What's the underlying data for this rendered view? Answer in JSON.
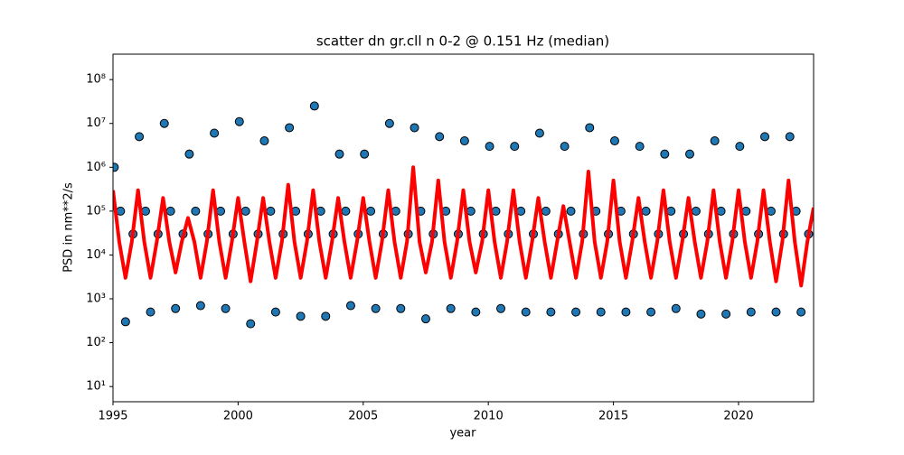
{
  "chart_data": [
    {
      "type": "scatter",
      "title": "scatter dn gr.cll n 0-2 @ 0.151 Hz (median)",
      "xlabel": "year",
      "ylabel": "PSD in nm**2/s",
      "xlim": [
        1995,
        2023
      ],
      "xticks": [
        1995,
        2000,
        2005,
        2010,
        2015,
        2020
      ],
      "ylim": [
        4.5,
        380000000.0
      ],
      "yscale": "log",
      "yticks": [
        {
          "value": 10,
          "label": "10¹"
        },
        {
          "value": 100,
          "label": "10²"
        },
        {
          "value": 1000,
          "label": "10³"
        },
        {
          "value": 10000,
          "label": "10⁴"
        },
        {
          "value": 100000,
          "label": "10⁵"
        },
        {
          "value": 1000000,
          "label": "10⁶"
        },
        {
          "value": 10000000,
          "label": "10⁷"
        },
        {
          "value": 100000000,
          "label": "10⁸"
        }
      ],
      "color": "#1f77b4",
      "edgecolor": "#000000",
      "x": [
        1995.05,
        1995.3,
        1995.5,
        1995.8,
        1996.05,
        1996.3,
        1996.5,
        1996.8,
        1997.05,
        1997.3,
        1997.5,
        1997.8,
        1998.05,
        1998.3,
        1998.5,
        1998.8,
        1999.05,
        1999.3,
        1999.5,
        1999.8,
        2000.05,
        2000.3,
        2000.5,
        2000.8,
        2001.05,
        2001.3,
        2001.5,
        2001.8,
        2002.05,
        2002.3,
        2002.5,
        2002.8,
        2003.05,
        2003.3,
        2003.5,
        2003.8,
        2004.05,
        2004.3,
        2004.5,
        2004.8,
        2005.05,
        2005.3,
        2005.5,
        2005.8,
        2006.05,
        2006.3,
        2006.5,
        2006.8,
        2007.05,
        2007.3,
        2007.5,
        2007.8,
        2008.05,
        2008.3,
        2008.5,
        2008.8,
        2009.05,
        2009.3,
        2009.5,
        2009.8,
        2010.05,
        2010.3,
        2010.5,
        2010.8,
        2011.05,
        2011.3,
        2011.5,
        2011.8,
        2012.05,
        2012.3,
        2012.5,
        2012.8,
        2013.05,
        2013.3,
        2013.5,
        2013.8,
        2014.05,
        2014.3,
        2014.5,
        2014.8,
        2015.05,
        2015.3,
        2015.5,
        2015.8,
        2016.05,
        2016.3,
        2016.5,
        2016.8,
        2017.05,
        2017.3,
        2017.5,
        2017.8,
        2018.05,
        2018.3,
        2018.5,
        2018.8,
        2019.05,
        2019.3,
        2019.5,
        2019.8,
        2020.05,
        2020.3,
        2020.5,
        2020.8,
        2021.05,
        2021.3,
        2021.5,
        2021.8,
        2022.05,
        2022.3,
        2022.5,
        2022.8
      ],
      "values": [
        1000000.0,
        100000.0,
        300,
        30000.0,
        5000000.0,
        100000.0,
        500,
        30000.0,
        10000000.0,
        100000.0,
        600,
        30000.0,
        2000000.0,
        100000.0,
        700,
        30000.0,
        6000000.0,
        100000.0,
        600,
        30000.0,
        11000000.0,
        100000.0,
        270,
        30000.0,
        4000000.0,
        100000.0,
        500,
        30000.0,
        8000000.0,
        100000.0,
        400,
        30000.0,
        25000000.0,
        100000.0,
        400,
        30000.0,
        2000000.0,
        100000.0,
        700,
        30000.0,
        2000000.0,
        100000.0,
        600,
        30000.0,
        10000000.0,
        100000.0,
        600,
        30000.0,
        8000000.0,
        100000.0,
        350,
        30000.0,
        5000000.0,
        100000.0,
        600,
        30000.0,
        4000000.0,
        100000.0,
        500,
        30000.0,
        3000000.0,
        100000.0,
        600,
        30000.0,
        3000000.0,
        100000.0,
        500,
        30000.0,
        6000000.0,
        100000.0,
        500,
        30000.0,
        3000000.0,
        100000.0,
        500,
        30000.0,
        8000000.0,
        100000.0,
        500,
        30000.0,
        4000000.0,
        100000.0,
        500,
        30000.0,
        3000000.0,
        100000.0,
        500,
        30000.0,
        2000000.0,
        100000.0,
        600,
        30000.0,
        2000000.0,
        100000.0,
        450,
        30000.0,
        4000000.0,
        100000.0,
        450,
        30000.0,
        3000000.0,
        100000.0,
        500,
        30000.0,
        5000000.0,
        100000.0,
        500,
        30000.0,
        5000000.0,
        100000.0,
        500,
        30000.0
      ]
    },
    {
      "type": "line",
      "color": "#ff0000",
      "x": [
        1995,
        1995.25,
        1995.5,
        1995.75,
        1996,
        1996.25,
        1996.5,
        1996.75,
        1997,
        1997.25,
        1997.5,
        1997.75,
        1998,
        1998.25,
        1998.5,
        1998.75,
        1999,
        1999.25,
        1999.5,
        1999.75,
        2000,
        2000.25,
        2000.5,
        2000.75,
        2001,
        2001.25,
        2001.5,
        2001.75,
        2002,
        2002.25,
        2002.5,
        2002.75,
        2003,
        2003.25,
        2003.5,
        2003.75,
        2004,
        2004.25,
        2004.5,
        2004.75,
        2005,
        2005.25,
        2005.5,
        2005.75,
        2006,
        2006.25,
        2006.5,
        2006.75,
        2007,
        2007.25,
        2007.5,
        2007.75,
        2008,
        2008.25,
        2008.5,
        2008.75,
        2009,
        2009.25,
        2009.5,
        2009.75,
        2010,
        2010.25,
        2010.5,
        2010.75,
        2011,
        2011.25,
        2011.5,
        2011.75,
        2012,
        2012.25,
        2012.5,
        2012.75,
        2013,
        2013.25,
        2013.5,
        2013.75,
        2014,
        2014.25,
        2014.5,
        2014.75,
        2015,
        2015.25,
        2015.5,
        2015.75,
        2016,
        2016.25,
        2016.5,
        2016.75,
        2017,
        2017.25,
        2017.5,
        2017.75,
        2018,
        2018.25,
        2018.5,
        2018.75,
        2019,
        2019.25,
        2019.5,
        2019.75,
        2020,
        2020.25,
        2020.5,
        2020.75,
        2021,
        2021.25,
        2021.5,
        2021.75,
        2022,
        2022.25,
        2022.5,
        2022.75,
        2023
      ],
      "values": [
        300000.0,
        20000.0,
        3000,
        20000.0,
        300000.0,
        20000.0,
        3000,
        20000.0,
        200000.0,
        20000.0,
        4000,
        20000.0,
        70000.0,
        20000.0,
        3000,
        20000.0,
        300000.0,
        20000.0,
        3000,
        20000.0,
        200000.0,
        20000.0,
        2500,
        20000.0,
        200000.0,
        20000.0,
        3000,
        20000.0,
        400000.0,
        20000.0,
        3000,
        20000.0,
        300000.0,
        20000.0,
        3000,
        20000.0,
        200000.0,
        20000.0,
        3000,
        20000.0,
        200000.0,
        20000.0,
        3000,
        20000.0,
        300000.0,
        20000.0,
        3000,
        20000.0,
        1000000.0,
        20000.0,
        4000,
        20000.0,
        500000.0,
        20000.0,
        3000,
        20000.0,
        300000.0,
        20000.0,
        4000,
        20000.0,
        300000.0,
        20000.0,
        3000,
        20000.0,
        300000.0,
        20000.0,
        3000,
        20000.0,
        200000.0,
        20000.0,
        3000,
        20000.0,
        130000.0,
        20000.0,
        3000,
        20000.0,
        800000.0,
        20000.0,
        3000,
        20000.0,
        500000.0,
        20000.0,
        3000,
        20000.0,
        200000.0,
        20000.0,
        3000,
        20000.0,
        300000.0,
        20000.0,
        3000,
        20000.0,
        200000.0,
        20000.0,
        3000,
        20000.0,
        300000.0,
        20000.0,
        3000,
        20000.0,
        300000.0,
        20000.0,
        3000,
        20000.0,
        300000.0,
        20000.0,
        2500,
        20000.0,
        500000.0,
        20000.0,
        2000,
        20000.0,
        120000.0
      ]
    }
  ]
}
